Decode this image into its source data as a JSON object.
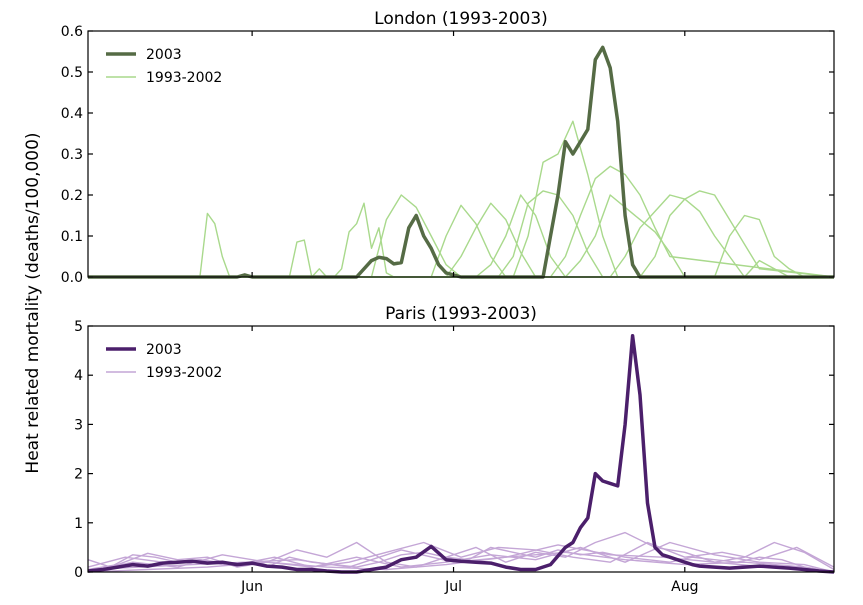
{
  "figure": {
    "ylabel": "Heat related mortality (deaths/100,000)"
  },
  "chart_data": [
    {
      "type": "line",
      "title": "London (1993-2003)",
      "ylim": [
        0,
        0.6
      ],
      "yticks": [
        "0.0",
        "0.1",
        "0.2",
        "0.3",
        "0.4",
        "0.5",
        "0.6"
      ],
      "xlim": [
        0,
        100
      ],
      "xticks": [
        {
          "x": 22,
          "label": ""
        },
        {
          "x": 49,
          "label": ""
        },
        {
          "x": 80,
          "label": ""
        }
      ],
      "legend": {
        "loc": "upper left",
        "entries": [
          "2003",
          "1993-2002"
        ]
      },
      "colors": {
        "highlight": "#556b45",
        "others": "#a9d98c"
      },
      "series_highlight": {
        "name": "2003",
        "x": [
          0,
          10,
          14,
          16,
          18,
          20,
          22,
          24,
          30,
          35,
          38,
          40,
          42,
          44,
          46,
          48,
          50,
          52,
          53,
          54,
          55,
          56,
          57,
          58,
          59,
          60,
          61,
          62,
          63,
          64,
          65,
          66,
          67,
          68,
          69,
          70,
          71,
          72,
          73,
          74,
          75,
          76,
          77,
          78,
          79,
          80,
          81,
          82,
          83,
          84,
          85,
          86,
          87,
          88,
          89,
          90,
          91,
          92,
          93,
          94,
          95,
          96,
          97,
          98,
          99,
          100
        ],
        "y": [
          0,
          0,
          0,
          0,
          0,
          0,
          0.005,
          0,
          0,
          0,
          0,
          0,
          0,
          0,
          0,
          0,
          0,
          0,
          0,
          0,
          0,
          0,
          0,
          0,
          0,
          0,
          0,
          0,
          0,
          0,
          0,
          0,
          0,
          0,
          0,
          0,
          0,
          0,
          0,
          0,
          0,
          0,
          0,
          0,
          0,
          0,
          0,
          0,
          0,
          0,
          0,
          0,
          0,
          0,
          0,
          0,
          0,
          0,
          0,
          0,
          0,
          0,
          0,
          0,
          0,
          0
        ]
      },
      "series_2003": {
        "x": [
          0,
          4,
          8,
          12,
          16,
          20,
          21,
          22,
          23,
          28,
          32,
          36,
          38,
          39,
          40,
          41,
          42,
          43,
          44,
          45,
          46,
          47,
          48,
          49,
          50,
          51,
          52,
          53,
          54,
          55,
          56,
          57,
          58,
          59,
          60,
          61,
          62,
          63,
          64,
          65,
          66,
          67,
          68,
          69,
          70,
          71,
          72,
          73,
          74,
          75,
          76,
          77,
          78,
          79,
          80,
          81,
          82,
          83,
          84,
          85,
          86,
          87,
          88,
          89,
          90,
          91,
          92,
          93,
          94,
          95,
          96,
          97,
          98,
          99,
          100
        ],
        "y": [
          0,
          0,
          0,
          0,
          0,
          0,
          0.005,
          0,
          0,
          0,
          0,
          0,
          0.04,
          0.048,
          0.045,
          0.032,
          0.035,
          0.12,
          0.15,
          0.1,
          0.07,
          0.03,
          0.01,
          0.005,
          0,
          0,
          0,
          0,
          0,
          0,
          0,
          0,
          0,
          0,
          0,
          0,
          0.1,
          0.2,
          0.33,
          0.3,
          0.33,
          0.36,
          0.53,
          0.56,
          0.51,
          0.38,
          0.15,
          0.03,
          0,
          0,
          0,
          0,
          0,
          0,
          0,
          0,
          0,
          0,
          0,
          0,
          0,
          0,
          0,
          0,
          0,
          0,
          0,
          0,
          0,
          0,
          0,
          0,
          0,
          0,
          0
        ]
      },
      "series": [
        {
          "x": [
            0,
            15,
            16,
            17,
            18,
            19,
            20,
            40,
            100
          ],
          "y": [
            0,
            0,
            0.155,
            0.13,
            0.05,
            0,
            0,
            0,
            0
          ]
        },
        {
          "x": [
            0,
            27,
            28,
            29,
            30,
            31,
            32,
            100
          ],
          "y": [
            0,
            0,
            0.085,
            0.09,
            0.0,
            0.02,
            0,
            0
          ]
        },
        {
          "x": [
            0,
            33,
            34,
            35,
            36,
            37,
            38,
            39,
            40,
            41,
            42,
            100
          ],
          "y": [
            0,
            0,
            0.02,
            0.11,
            0.13,
            0.18,
            0.07,
            0.12,
            0.01,
            0,
            0,
            0
          ]
        },
        {
          "x": [
            0,
            38,
            40,
            42,
            44,
            46,
            48,
            50,
            52,
            100
          ],
          "y": [
            0,
            0,
            0.14,
            0.2,
            0.17,
            0.1,
            0.03,
            0,
            0,
            0
          ]
        },
        {
          "x": [
            0,
            46,
            48,
            50,
            52,
            54,
            56,
            58,
            100
          ],
          "y": [
            0,
            0,
            0.1,
            0.175,
            0.13,
            0.05,
            0.0,
            0.0,
            0
          ]
        },
        {
          "x": [
            0,
            48,
            50,
            52,
            54,
            56,
            58,
            60,
            62,
            100
          ],
          "y": [
            0,
            0,
            0.05,
            0.12,
            0.18,
            0.14,
            0.06,
            0.0,
            0.0,
            0
          ]
        },
        {
          "x": [
            0,
            52,
            54,
            56,
            58,
            60,
            62,
            64,
            66,
            68,
            70,
            100
          ],
          "y": [
            0,
            0,
            0.03,
            0.1,
            0.2,
            0.15,
            0.05,
            0.0,
            0.0,
            0,
            0,
            0
          ]
        },
        {
          "x": [
            0,
            57,
            59,
            61,
            63,
            65,
            67,
            69,
            71,
            100
          ],
          "y": [
            0,
            0,
            0.1,
            0.28,
            0.3,
            0.38,
            0.25,
            0.1,
            0,
            0
          ]
        },
        {
          "x": [
            0,
            55,
            57,
            59,
            61,
            63,
            65,
            67,
            69,
            71,
            100
          ],
          "y": [
            0,
            0,
            0.05,
            0.18,
            0.21,
            0.2,
            0.15,
            0.06,
            0,
            0,
            0
          ]
        },
        {
          "x": [
            0,
            62,
            64,
            66,
            68,
            70,
            72,
            74,
            76,
            78,
            100
          ],
          "y": [
            0,
            0,
            0.05,
            0.15,
            0.24,
            0.27,
            0.25,
            0.2,
            0.12,
            0.05,
            0
          ]
        },
        {
          "x": [
            0,
            64,
            66,
            68,
            70,
            72,
            74,
            76,
            78,
            80,
            82,
            100
          ],
          "y": [
            0,
            0,
            0.04,
            0.1,
            0.2,
            0.17,
            0.14,
            0.11,
            0.06,
            0,
            0,
            0
          ]
        },
        {
          "x": [
            0,
            70,
            72,
            74,
            76,
            78,
            80,
            82,
            84,
            86,
            88,
            90,
            100
          ],
          "y": [
            0,
            0,
            0.05,
            0.12,
            0.16,
            0.2,
            0.19,
            0.16,
            0.1,
            0.05,
            0.0,
            0,
            0
          ]
        },
        {
          "x": [
            0,
            74,
            76,
            78,
            80,
            82,
            84,
            86,
            88,
            90,
            100
          ],
          "y": [
            0,
            0,
            0.05,
            0.15,
            0.19,
            0.21,
            0.2,
            0.14,
            0.08,
            0.02,
            0
          ]
        },
        {
          "x": [
            0,
            84,
            86,
            88,
            90,
            92,
            94,
            96,
            98,
            100
          ],
          "y": [
            0,
            0,
            0.1,
            0.15,
            0.14,
            0.05,
            0.02,
            0,
            0,
            0
          ]
        },
        {
          "x": [
            0,
            88,
            90,
            92,
            94,
            96,
            98,
            100
          ],
          "y": [
            0,
            0,
            0.04,
            0.02,
            0,
            0,
            0,
            0
          ]
        }
      ]
    },
    {
      "type": "line",
      "title": "Paris (1993-2003)",
      "ylim": [
        0,
        5
      ],
      "yticks": [
        "0",
        "1",
        "2",
        "3",
        "4",
        "5"
      ],
      "xlim": [
        0,
        100
      ],
      "xticks": [
        {
          "x": 22,
          "label": "Jun"
        },
        {
          "x": 49,
          "label": "Jul"
        },
        {
          "x": 80,
          "label": "Aug"
        }
      ],
      "legend": {
        "loc": "upper left",
        "entries": [
          "2003",
          "1993-2002"
        ]
      },
      "colors": {
        "highlight": "#4b1f6b",
        "others": "#c4a6d6"
      },
      "series_2003": {
        "x": [
          0,
          2,
          4,
          6,
          8,
          10,
          12,
          14,
          16,
          18,
          20,
          22,
          24,
          26,
          28,
          30,
          32,
          34,
          36,
          38,
          40,
          42,
          44,
          46,
          48,
          50,
          52,
          54,
          56,
          58,
          60,
          62,
          64,
          65,
          66,
          67,
          68,
          69,
          70,
          71,
          72,
          73,
          74,
          75,
          76,
          77,
          78,
          79,
          80,
          81,
          82,
          84,
          86,
          88,
          90,
          92,
          94,
          96,
          98,
          100
        ],
        "y": [
          0.02,
          0.05,
          0.1,
          0.15,
          0.12,
          0.18,
          0.2,
          0.22,
          0.18,
          0.2,
          0.15,
          0.18,
          0.12,
          0.1,
          0.05,
          0.05,
          0.02,
          0.0,
          0.0,
          0.05,
          0.1,
          0.25,
          0.3,
          0.52,
          0.25,
          0.22,
          0.2,
          0.18,
          0.1,
          0.05,
          0.05,
          0.15,
          0.5,
          0.6,
          0.9,
          1.1,
          2.0,
          1.85,
          1.8,
          1.75,
          3.0,
          4.8,
          3.6,
          1.4,
          0.5,
          0.35,
          0.3,
          0.25,
          0.2,
          0.15,
          0.12,
          0.1,
          0.08,
          0.1,
          0.12,
          0.1,
          0.08,
          0.05,
          0.02,
          0
        ]
      },
      "series": [
        {
          "x": [
            0,
            3,
            6,
            9,
            12,
            15,
            18,
            21,
            24,
            27,
            30,
            33,
            36,
            39,
            42,
            45,
            48,
            51,
            54,
            57,
            60,
            63,
            66,
            69,
            72,
            75,
            78,
            81,
            84,
            87,
            90,
            93,
            96,
            100
          ],
          "y": [
            0.25,
            0.1,
            0.35,
            0.3,
            0.2,
            0.25,
            0.15,
            0.2,
            0.1,
            0.3,
            0.2,
            0.15,
            0.1,
            0.2,
            0.35,
            0.4,
            0.3,
            0.25,
            0.5,
            0.4,
            0.3,
            0.45,
            0.35,
            0.4,
            0.3,
            0.25,
            0.2,
            0.3,
            0.25,
            0.2,
            0.3,
            0.25,
            0.1,
            0
          ]
        },
        {
          "x": [
            0,
            4,
            8,
            12,
            16,
            20,
            24,
            28,
            32,
            36,
            40,
            44,
            48,
            52,
            56,
            60,
            64,
            68,
            72,
            76,
            80,
            84,
            88,
            92,
            96,
            100
          ],
          "y": [
            0.05,
            0.15,
            0.38,
            0.25,
            0.3,
            0.1,
            0.2,
            0.45,
            0.3,
            0.6,
            0.2,
            0.1,
            0.3,
            0.5,
            0.2,
            0.4,
            0.3,
            0.6,
            0.8,
            0.5,
            0.4,
            0.2,
            0.3,
            0.6,
            0.4,
            0.05
          ]
        },
        {
          "x": [
            0,
            5,
            10,
            15,
            20,
            25,
            30,
            35,
            40,
            45,
            50,
            55,
            60,
            65,
            70,
            75,
            80,
            85,
            90,
            95,
            100
          ],
          "y": [
            0.1,
            0.3,
            0.2,
            0.25,
            0.15,
            0.3,
            0.1,
            0.2,
            0.4,
            0.6,
            0.3,
            0.5,
            0.45,
            0.3,
            0.2,
            0.6,
            0.3,
            0.4,
            0.25,
            0.5,
            0.1
          ]
        },
        {
          "x": [
            0,
            6,
            12,
            18,
            24,
            30,
            36,
            42,
            48,
            54,
            60,
            66,
            72,
            78,
            84,
            90,
            96,
            100
          ],
          "y": [
            0.0,
            0.2,
            0.1,
            0.35,
            0.2,
            0.1,
            0.3,
            0.1,
            0.2,
            0.35,
            0.25,
            0.5,
            0.2,
            0.6,
            0.35,
            0.2,
            0.15,
            0.0
          ]
        },
        {
          "x": [
            0,
            7,
            14,
            21,
            28,
            35,
            42,
            49,
            56,
            63,
            70,
            77,
            84,
            91,
            98,
            100
          ],
          "y": [
            0.05,
            0.1,
            0.15,
            0.2,
            0.25,
            0.1,
            0.45,
            0.2,
            0.3,
            0.55,
            0.35,
            0.3,
            0.2,
            0.1,
            0.05,
            0.0
          ]
        },
        {
          "x": [
            0,
            8,
            16,
            24,
            32,
            40,
            48,
            56,
            64,
            72,
            80,
            88,
            96,
            100
          ],
          "y": [
            0.0,
            0.05,
            0.1,
            0.2,
            0.1,
            0.05,
            0.15,
            0.3,
            0.4,
            0.25,
            0.15,
            0.2,
            0.1,
            0.0
          ]
        }
      ]
    }
  ]
}
